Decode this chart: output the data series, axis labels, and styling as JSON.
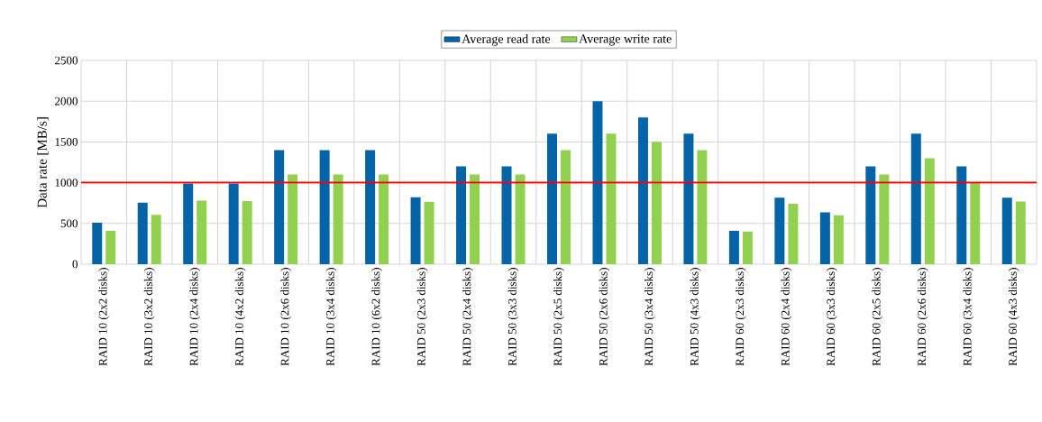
{
  "chart_data": {
    "type": "bar",
    "ylabel": "Data rate [MB/s]",
    "categories": [
      "RAID 10 (2x2 disks)",
      "RAID 10 (3x2 disks)",
      "RAID 10 (2x4 disks)",
      "RAID 10 (4x2 disks)",
      "RAID 10 (2x6 disks)",
      "RAID 10 (3x4 disks)",
      "RAID 10 (6x2 disks)",
      "RAID 50 (2x3 disks)",
      "RAID 50 (2x4 disks)",
      "RAID 50 (3x3 disks)",
      "RAID 50 (2x5 disks)",
      "RAID 50 (2x6 disks)",
      "RAID 50 (3x4 disks)",
      "RAID 50 (4x3 disks)",
      "RAID 60 (2x3 disks)",
      "RAID 60 (2x4 disks)",
      "RAID 60 (3x3 disks)",
      "RAID 60 (2x5 disks)",
      "RAID 60 (2x6 disks)",
      "RAID 60 (3x4 disks)",
      "RAID 60 (4x3 disks)"
    ],
    "series": [
      {
        "name": "Average read rate",
        "color": "#0563a8",
        "values": [
          510,
          755,
          990,
          990,
          1400,
          1400,
          1400,
          820,
          1200,
          1200,
          1600,
          2000,
          1800,
          1600,
          410,
          815,
          635,
          1200,
          1600,
          1200,
          815
        ]
      },
      {
        "name": "Average write rate",
        "color": "#92d050",
        "values": [
          410,
          605,
          780,
          775,
          1100,
          1100,
          1100,
          765,
          1100,
          1100,
          1400,
          1600,
          1500,
          1400,
          400,
          740,
          600,
          1100,
          1300,
          1000,
          770
        ]
      }
    ],
    "ylim": [
      0,
      2500
    ],
    "yticks": [
      0,
      500,
      1000,
      1500,
      2000,
      2500
    ],
    "grid": true,
    "legend": "top",
    "ref_lines": [
      {
        "axis": "y",
        "value": 1000,
        "color": "#ff0000"
      }
    ]
  }
}
